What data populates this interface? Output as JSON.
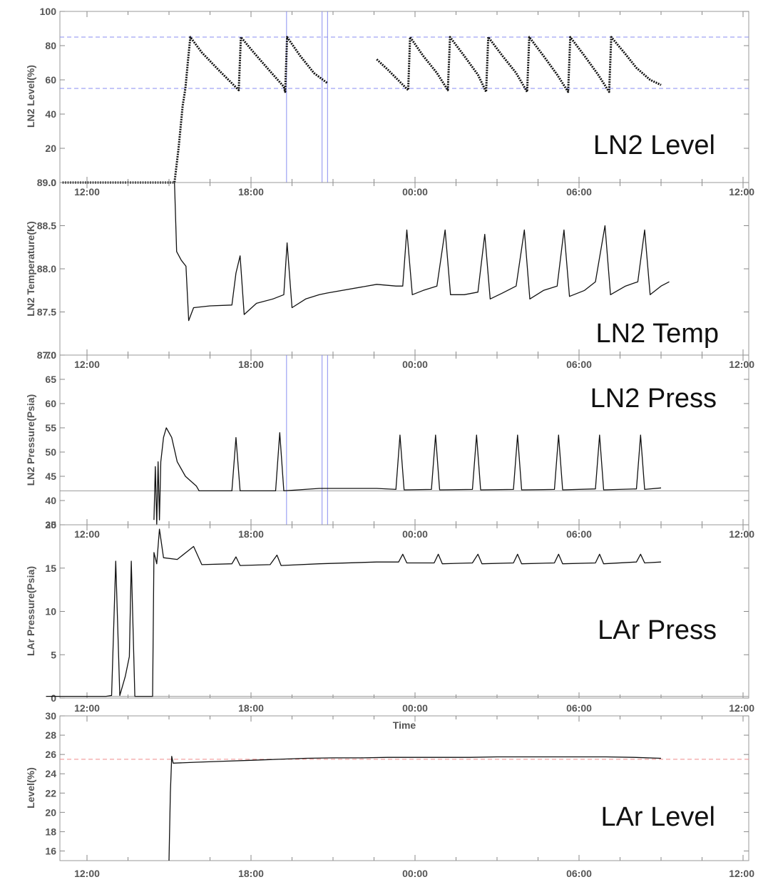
{
  "colors": {
    "trace": "#111111",
    "blue_ref": "#8a8ef0",
    "red_ref": "#f08a8a",
    "gray_ref": "#9a9a9a",
    "frame": "#999999"
  },
  "chart_data": [
    {
      "type": "line",
      "title": "LN2 Level",
      "xlabel": "",
      "ylabel": "LN2 Level(%)",
      "ylim": [
        0,
        100
      ],
      "yticks": [
        "0",
        "20",
        "40",
        "60",
        "80",
        "100"
      ],
      "xticks": [
        "12:00",
        "18:00",
        "00:00",
        "06:00",
        "12:00"
      ],
      "xlim_hours": [
        10.5,
        36
      ],
      "hlines": [
        {
          "y": 85,
          "color": "blue"
        },
        {
          "y": 55,
          "color": "blue"
        }
      ],
      "vlines": [
        {
          "x": 19.3,
          "color": "blue"
        },
        {
          "x": 20.6,
          "color": "blue"
        },
        {
          "x": 20.8,
          "color": "blue"
        }
      ],
      "series": [
        {
          "marker": "dot",
          "points": [
            [
              11.1,
              0
            ],
            [
              11.7,
              0
            ],
            [
              15.2,
              0
            ],
            [
              15.35,
              20
            ],
            [
              15.5,
              45
            ],
            [
              15.6,
              55
            ],
            [
              15.7,
              72
            ],
            [
              15.78,
              85
            ],
            [
              16.2,
              76
            ],
            [
              16.8,
              66
            ],
            [
              17.3,
              58
            ],
            [
              17.55,
              54
            ],
            [
              17.63,
              85
            ],
            [
              18.1,
              76
            ],
            [
              18.7,
              65
            ],
            [
              19.2,
              56
            ],
            [
              19.25,
              53
            ],
            [
              19.32,
              85
            ],
            [
              19.8,
              74
            ],
            [
              20.3,
              64
            ],
            [
              20.8,
              58
            ],
            [
              22.6,
              72
            ],
            [
              23.0,
              66
            ],
            [
              23.5,
              58
            ],
            [
              23.75,
              54
            ],
            [
              23.82,
              85
            ],
            [
              24.3,
              74
            ],
            [
              24.8,
              64
            ],
            [
              25.2,
              54
            ],
            [
              25.28,
              85
            ],
            [
              25.8,
              74
            ],
            [
              26.3,
              63
            ],
            [
              26.6,
              53
            ],
            [
              26.68,
              85
            ],
            [
              27.2,
              74
            ],
            [
              27.7,
              64
            ],
            [
              28.1,
              53
            ],
            [
              28.18,
              85
            ],
            [
              28.7,
              74
            ],
            [
              29.2,
              63
            ],
            [
              29.6,
              53
            ],
            [
              29.68,
              85
            ],
            [
              30.2,
              74
            ],
            [
              30.7,
              63
            ],
            [
              31.1,
              53
            ],
            [
              31.18,
              85
            ],
            [
              31.7,
              75
            ],
            [
              32.1,
              67
            ],
            [
              32.6,
              60
            ],
            [
              33.0,
              57
            ]
          ]
        }
      ]
    },
    {
      "type": "line",
      "title": "LN2 Temp",
      "xlabel": "",
      "ylabel": "LN2 Temperature(K)",
      "ylim": [
        87.0,
        89.0
      ],
      "yticks": [
        "87.0",
        "87.5",
        "88.0",
        "88.5",
        "89.0"
      ],
      "xticks": [
        "12:00",
        "18:00",
        "00:00",
        "06:00",
        "12:00"
      ],
      "xlim_hours": [
        10.5,
        36
      ],
      "series": [
        {
          "marker": "line",
          "points": [
            [
              15.2,
              89.0
            ],
            [
              15.28,
              88.2
            ],
            [
              15.45,
              88.1
            ],
            [
              15.62,
              88.03
            ],
            [
              15.72,
              87.4
            ],
            [
              15.9,
              87.55
            ],
            [
              16.5,
              87.57
            ],
            [
              17.3,
              87.58
            ],
            [
              17.45,
              87.95
            ],
            [
              17.6,
              88.15
            ],
            [
              17.75,
              87.47
            ],
            [
              18.2,
              87.6
            ],
            [
              18.8,
              87.65
            ],
            [
              19.2,
              87.7
            ],
            [
              19.32,
              88.3
            ],
            [
              19.5,
              87.55
            ],
            [
              20.0,
              87.65
            ],
            [
              20.5,
              87.7
            ],
            [
              20.8,
              87.72
            ],
            [
              22.6,
              87.82
            ],
            [
              23.3,
              87.8
            ],
            [
              23.55,
              87.8
            ],
            [
              23.7,
              88.45
            ],
            [
              23.9,
              87.7
            ],
            [
              24.3,
              87.75
            ],
            [
              24.8,
              87.8
            ],
            [
              25.1,
              88.45
            ],
            [
              25.3,
              87.7
            ],
            [
              25.8,
              87.7
            ],
            [
              26.3,
              87.73
            ],
            [
              26.55,
              88.4
            ],
            [
              26.75,
              87.65
            ],
            [
              27.2,
              87.72
            ],
            [
              27.7,
              87.8
            ],
            [
              28.0,
              88.45
            ],
            [
              28.2,
              87.65
            ],
            [
              28.7,
              87.75
            ],
            [
              29.2,
              87.8
            ],
            [
              29.45,
              88.45
            ],
            [
              29.65,
              87.68
            ],
            [
              30.2,
              87.75
            ],
            [
              30.6,
              87.85
            ],
            [
              30.95,
              88.5
            ],
            [
              31.15,
              87.7
            ],
            [
              31.7,
              87.8
            ],
            [
              32.15,
              87.85
            ],
            [
              32.4,
              88.45
            ],
            [
              32.6,
              87.7
            ],
            [
              33.0,
              87.8
            ],
            [
              33.3,
              87.85
            ]
          ]
        }
      ]
    },
    {
      "type": "line",
      "title": "LN2 Press",
      "xlabel": "",
      "ylabel": "LN2 Pressure(Psia)",
      "ylim": [
        35,
        70
      ],
      "yticks": [
        "35",
        "40",
        "45",
        "50",
        "55",
        "60",
        "65",
        "70"
      ],
      "xticks": [
        "12:00",
        "18:00",
        "00:00",
        "06:00",
        "12:00"
      ],
      "xlim_hours": [
        10.5,
        36
      ],
      "hlines": [
        {
          "y": 42,
          "color": "gray"
        }
      ],
      "vlines": [
        {
          "x": 19.3,
          "color": "blue"
        },
        {
          "x": 20.6,
          "color": "blue"
        },
        {
          "x": 20.8,
          "color": "blue"
        }
      ],
      "series": [
        {
          "marker": "line",
          "points": [
            [
              14.45,
              36
            ],
            [
              14.5,
              47
            ],
            [
              14.55,
              35
            ],
            [
              14.6,
              48
            ],
            [
              14.65,
              36
            ],
            [
              14.7,
              48
            ],
            [
              14.8,
              53
            ],
            [
              14.9,
              55
            ],
            [
              15.1,
              53
            ],
            [
              15.3,
              48
            ],
            [
              15.6,
              45
            ],
            [
              16.0,
              43
            ],
            [
              16.1,
              42
            ],
            [
              17.3,
              42
            ],
            [
              17.45,
              53
            ],
            [
              17.6,
              42
            ],
            [
              18.9,
              42
            ],
            [
              19.05,
              54
            ],
            [
              19.2,
              42
            ],
            [
              20.5,
              42.5
            ],
            [
              22.6,
              42.5
            ],
            [
              23.3,
              42.3
            ],
            [
              23.45,
              53.5
            ],
            [
              23.6,
              42.2
            ],
            [
              24.6,
              42.3
            ],
            [
              24.75,
              53.5
            ],
            [
              24.9,
              42.2
            ],
            [
              26.1,
              42.3
            ],
            [
              26.25,
              53.5
            ],
            [
              26.4,
              42.2
            ],
            [
              27.6,
              42.3
            ],
            [
              27.75,
              53.5
            ],
            [
              27.9,
              42.2
            ],
            [
              29.1,
              42.3
            ],
            [
              29.25,
              53.5
            ],
            [
              29.4,
              42.2
            ],
            [
              30.6,
              42.4
            ],
            [
              30.75,
              53.5
            ],
            [
              30.9,
              42.2
            ],
            [
              32.1,
              42.4
            ],
            [
              32.25,
              53.5
            ],
            [
              32.4,
              42.3
            ],
            [
              33.0,
              42.6
            ]
          ]
        }
      ]
    },
    {
      "type": "line",
      "title": "LAr Press",
      "xlabel": "Time",
      "ylabel": "LAr Pressure(Psia)",
      "ylim": [
        0,
        20
      ],
      "yticks": [
        "0",
        "5",
        "10",
        "15",
        "20"
      ],
      "xticks": [
        "12:00",
        "18:00",
        "00:00",
        "06:00",
        "12:00"
      ],
      "xlim_hours": [
        10.5,
        36
      ],
      "hlines": [
        {
          "y": 0.2,
          "color": "gray"
        }
      ],
      "series": [
        {
          "marker": "line",
          "points": [
            [
              10.5,
              0.2
            ],
            [
              12.7,
              0.2
            ],
            [
              12.9,
              0.3
            ],
            [
              13.05,
              15.8
            ],
            [
              13.2,
              0.3
            ],
            [
              13.4,
              2.5
            ],
            [
              13.55,
              4.8
            ],
            [
              13.62,
              15.8
            ],
            [
              13.75,
              0.2
            ],
            [
              14.4,
              0.2
            ],
            [
              14.45,
              16.8
            ],
            [
              14.55,
              15.5
            ],
            [
              14.65,
              19.5
            ],
            [
              14.8,
              16.2
            ],
            [
              15.3,
              16.0
            ],
            [
              15.7,
              17.0
            ],
            [
              15.9,
              17.5
            ],
            [
              16.2,
              15.4
            ],
            [
              17.3,
              15.5
            ],
            [
              17.45,
              16.3
            ],
            [
              17.6,
              15.3
            ],
            [
              18.7,
              15.4
            ],
            [
              18.95,
              16.5
            ],
            [
              19.1,
              15.3
            ],
            [
              20.5,
              15.5
            ],
            [
              22.6,
              15.7
            ],
            [
              23.4,
              15.7
            ],
            [
              23.55,
              16.6
            ],
            [
              23.7,
              15.6
            ],
            [
              24.7,
              15.6
            ],
            [
              24.85,
              16.6
            ],
            [
              25.0,
              15.5
            ],
            [
              26.1,
              15.6
            ],
            [
              26.3,
              16.6
            ],
            [
              26.45,
              15.5
            ],
            [
              27.6,
              15.6
            ],
            [
              27.75,
              16.6
            ],
            [
              27.9,
              15.5
            ],
            [
              29.1,
              15.6
            ],
            [
              29.25,
              16.6
            ],
            [
              29.4,
              15.5
            ],
            [
              30.6,
              15.6
            ],
            [
              30.75,
              16.6
            ],
            [
              30.9,
              15.5
            ],
            [
              32.1,
              15.7
            ],
            [
              32.25,
              16.6
            ],
            [
              32.4,
              15.6
            ],
            [
              33.0,
              15.7
            ]
          ]
        }
      ]
    },
    {
      "type": "line",
      "title": "LAr Level",
      "xlabel": "",
      "ylabel": "Level(%)",
      "ylim": [
        15,
        30
      ],
      "yticks": [
        "16",
        "18",
        "20",
        "22",
        "24",
        "26",
        "28",
        "30"
      ],
      "xticks": [
        "12:00",
        "18:00",
        "00:00",
        "06:00",
        "12:00"
      ],
      "xlim_hours": [
        10.5,
        36
      ],
      "hlines": [
        {
          "y": 25.5,
          "color": "red"
        }
      ],
      "series": [
        {
          "marker": "line",
          "points": [
            [
              15.0,
              15.0
            ],
            [
              15.05,
              22.0
            ],
            [
              15.1,
              25.8
            ],
            [
              15.15,
              25.1
            ],
            [
              16.0,
              25.2
            ],
            [
              17.0,
              25.3
            ],
            [
              18.0,
              25.4
            ],
            [
              19.0,
              25.5
            ],
            [
              20.0,
              25.6
            ],
            [
              21.0,
              25.65
            ],
            [
              22.0,
              25.65
            ],
            [
              23.0,
              25.7
            ],
            [
              24.0,
              25.7
            ],
            [
              25.0,
              25.7
            ],
            [
              26.0,
              25.7
            ],
            [
              27.0,
              25.75
            ],
            [
              28.0,
              25.75
            ],
            [
              29.0,
              25.75
            ],
            [
              30.0,
              25.75
            ],
            [
              31.0,
              25.75
            ],
            [
              32.0,
              25.7
            ],
            [
              33.0,
              25.6
            ]
          ]
        }
      ]
    }
  ]
}
